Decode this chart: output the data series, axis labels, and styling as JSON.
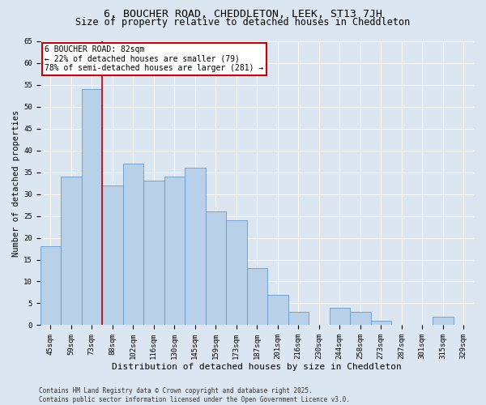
{
  "title": "6, BOUCHER ROAD, CHEDDLETON, LEEK, ST13 7JH",
  "subtitle": "Size of property relative to detached houses in Cheddleton",
  "xlabel": "Distribution of detached houses by size in Cheddleton",
  "ylabel": "Number of detached properties",
  "categories": [
    "45sqm",
    "59sqm",
    "73sqm",
    "88sqm",
    "102sqm",
    "116sqm",
    "130sqm",
    "145sqm",
    "159sqm",
    "173sqm",
    "187sqm",
    "201sqm",
    "216sqm",
    "230sqm",
    "244sqm",
    "258sqm",
    "273sqm",
    "287sqm",
    "301sqm",
    "315sqm",
    "329sqm"
  ],
  "values": [
    18,
    34,
    54,
    32,
    37,
    33,
    34,
    36,
    26,
    24,
    13,
    7,
    3,
    0,
    4,
    3,
    1,
    0,
    0,
    2,
    0
  ],
  "bar_color": "#b8d0e8",
  "bar_edge_color": "#6699cc",
  "property_bin_index": 2,
  "annotation_text": "6 BOUCHER ROAD: 82sqm\n← 22% of detached houses are smaller (79)\n78% of semi-detached houses are larger (281) →",
  "annotation_box_color": "#ffffff",
  "annotation_box_edge": "#cc0000",
  "vline_color": "#cc0000",
  "background_color": "#dce6f0",
  "plot_bg_color": "#dce6f0",
  "grid_color": "#ffffff",
  "ylim": [
    0,
    65
  ],
  "yticks": [
    0,
    5,
    10,
    15,
    20,
    25,
    30,
    35,
    40,
    45,
    50,
    55,
    60,
    65
  ],
  "footer": "Contains HM Land Registry data © Crown copyright and database right 2025.\nContains public sector information licensed under the Open Government Licence v3.0.",
  "title_fontsize": 9.5,
  "subtitle_fontsize": 8.5,
  "xlabel_fontsize": 8,
  "ylabel_fontsize": 7.5,
  "tick_fontsize": 6.5,
  "annotation_fontsize": 7,
  "footer_fontsize": 5.5
}
